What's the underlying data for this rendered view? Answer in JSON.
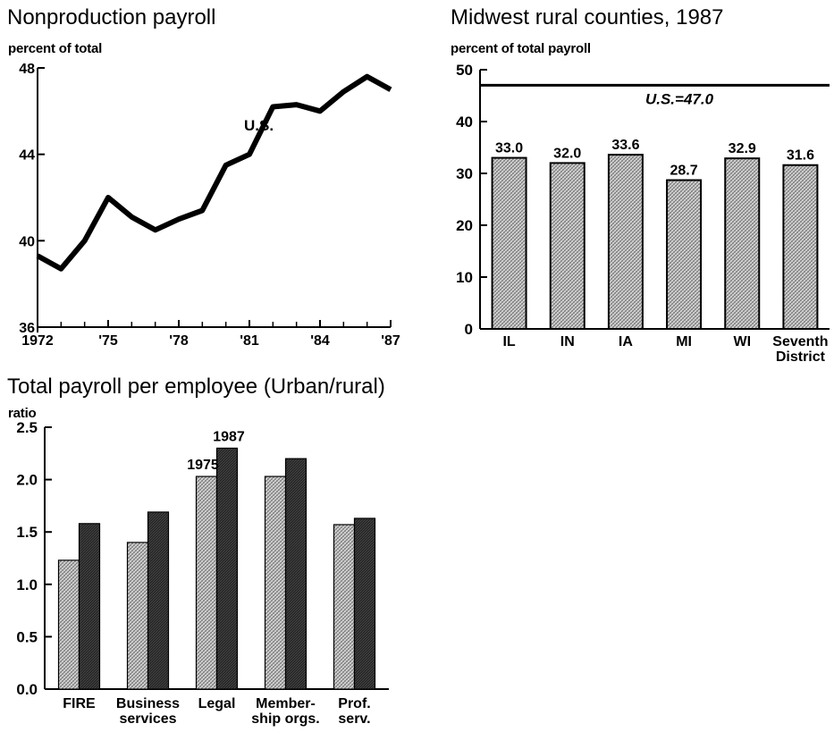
{
  "chart_data": [
    {
      "type": "line",
      "title": "Nonproduction payroll",
      "ylabel": "percent of total",
      "x": [
        1972,
        1973,
        1974,
        1975,
        1976,
        1977,
        1978,
        1979,
        1980,
        1981,
        1982,
        1983,
        1984,
        1985,
        1986,
        1987
      ],
      "series": [
        {
          "name": "U.S.",
          "values": [
            39.3,
            38.7,
            40.0,
            42.0,
            41.1,
            40.5,
            41.0,
            41.4,
            43.5,
            44.0,
            46.2,
            46.3,
            46.0,
            46.9,
            47.6,
            47.0
          ]
        }
      ],
      "xtick_labels": [
        "1972",
        "'75",
        "'78",
        "'81",
        "'84",
        "'87"
      ],
      "xtick_values": [
        1972,
        1975,
        1978,
        1981,
        1984,
        1987
      ],
      "ytick_labels": [
        "36",
        "40",
        "44",
        "48"
      ],
      "ylim": [
        36,
        48
      ],
      "xlim": [
        1972,
        1987
      ],
      "grid": false,
      "color": "#000000"
    },
    {
      "type": "bar",
      "title": "Midwest rural counties, 1987",
      "ylabel": "percent of total payroll",
      "categories": [
        [
          "IL"
        ],
        [
          "IN"
        ],
        [
          "IA"
        ],
        [
          "MI"
        ],
        [
          "WI"
        ],
        [
          "Seventh",
          "District"
        ]
      ],
      "values": [
        33.0,
        32.0,
        33.6,
        28.7,
        32.9,
        31.6
      ],
      "data_labels": [
        "33.0",
        "32.0",
        "33.6",
        "28.7",
        "32.9",
        "31.6"
      ],
      "reference_line": {
        "value": 47.0,
        "label": "U.S.=47.0"
      },
      "ytick_labels": [
        "0",
        "10",
        "20",
        "30",
        "40",
        "50"
      ],
      "ylim": [
        0,
        50
      ],
      "grid": false,
      "bar_fill": "#c4c4c4"
    },
    {
      "type": "bar",
      "title": "Total payroll per employee (Urban/rural)",
      "ylabel": "ratio",
      "categories": [
        [
          "FIRE"
        ],
        [
          "Business",
          "services"
        ],
        [
          "Legal"
        ],
        [
          "Member-",
          "ship orgs."
        ],
        [
          "Prof.",
          "serv."
        ]
      ],
      "series": [
        {
          "name": "1975",
          "values": [
            1.23,
            1.4,
            2.03,
            2.03,
            1.57
          ],
          "color": "#c4c4c4"
        },
        {
          "name": "1987",
          "values": [
            1.58,
            1.69,
            2.3,
            2.2,
            1.63
          ],
          "color": "#2a2a2a"
        }
      ],
      "ytick_labels": [
        "0.0",
        "0.5",
        "1.0",
        "1.5",
        "2.0",
        "2.5"
      ],
      "ylim": [
        0,
        2.5
      ],
      "grid": false
    }
  ]
}
